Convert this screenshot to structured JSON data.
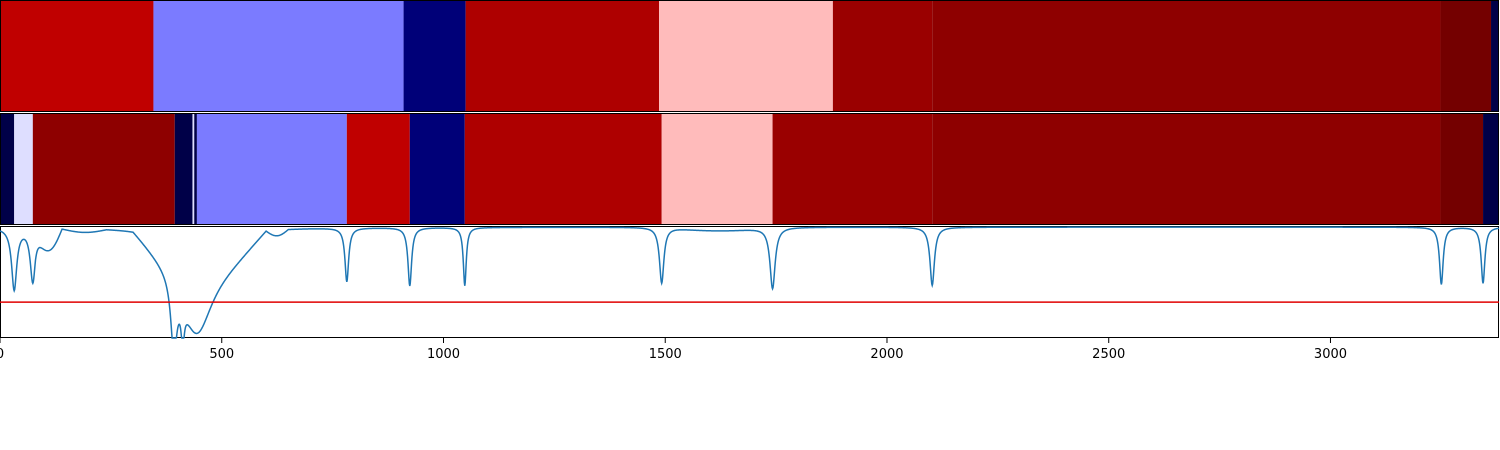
{
  "chart_data": {
    "type": "heatmap",
    "xlim": [
      0,
      3380
    ],
    "x_ticks": [
      {
        "value": 0,
        "label": "0"
      },
      {
        "value": 500,
        "label": "500"
      },
      {
        "value": 1000,
        "label": "1000"
      },
      {
        "value": 1500,
        "label": "1500"
      },
      {
        "value": 2000,
        "label": "2000"
      },
      {
        "value": 2500,
        "label": "2500"
      },
      {
        "value": 3000,
        "label": "3000"
      }
    ],
    "band_rows": [
      {
        "segments": [
          {
            "start": 0,
            "end": 346,
            "color": "#c00000"
          },
          {
            "start": 346,
            "end": 910,
            "color": "#7b7bff"
          },
          {
            "start": 910,
            "end": 1050,
            "color": "#000078"
          },
          {
            "start": 1050,
            "end": 1486,
            "color": "#ae0000"
          },
          {
            "start": 1486,
            "end": 1878,
            "color": "#ffbbbb"
          },
          {
            "start": 1878,
            "end": 2102,
            "color": "#9a0000"
          },
          {
            "start": 2102,
            "end": 3248,
            "color": "#8e0000"
          },
          {
            "start": 3248,
            "end": 3362,
            "color": "#740000"
          },
          {
            "start": 3362,
            "end": 3380,
            "color": "#000048"
          }
        ]
      },
      {
        "segments": [
          {
            "start": 0,
            "end": 32,
            "color": "#000048"
          },
          {
            "start": 32,
            "end": 74,
            "color": "#dedeff"
          },
          {
            "start": 74,
            "end": 394,
            "color": "#8e0000"
          },
          {
            "start": 394,
            "end": 434,
            "color": "#000048"
          },
          {
            "start": 434,
            "end": 438,
            "color": "#dedeff"
          },
          {
            "start": 438,
            "end": 444,
            "color": "#000048"
          },
          {
            "start": 444,
            "end": 782,
            "color": "#7b7bff"
          },
          {
            "start": 782,
            "end": 924,
            "color": "#c00000"
          },
          {
            "start": 924,
            "end": 1048,
            "color": "#000078"
          },
          {
            "start": 1048,
            "end": 1492,
            "color": "#ae0000"
          },
          {
            "start": 1492,
            "end": 1742,
            "color": "#ffbbbb"
          },
          {
            "start": 1742,
            "end": 2102,
            "color": "#9a0000"
          },
          {
            "start": 2102,
            "end": 3248,
            "color": "#8e0000"
          },
          {
            "start": 3248,
            "end": 3344,
            "color": "#740000"
          },
          {
            "start": 3344,
            "end": 3380,
            "color": "#000048"
          }
        ]
      }
    ],
    "line_series": {
      "color": "#1f77b4",
      "ylim": [
        0,
        1
      ],
      "baseline": 0.99,
      "dips": [
        {
          "x": 32,
          "depth": 0.55,
          "width": 7
        },
        {
          "x": 74,
          "depth": 0.48,
          "width": 7
        },
        {
          "x": 392,
          "depth": 0.62,
          "width": 8
        },
        {
          "x": 412,
          "depth": 0.32,
          "width": 4
        },
        {
          "x": 444,
          "depth": 0.55,
          "width": 40
        },
        {
          "x": 782,
          "depth": 0.48,
          "width": 5
        },
        {
          "x": 924,
          "depth": 0.52,
          "width": 5
        },
        {
          "x": 1048,
          "depth": 0.52,
          "width": 4
        },
        {
          "x": 1492,
          "depth": 0.5,
          "width": 6
        },
        {
          "x": 1742,
          "depth": 0.55,
          "width": 7
        },
        {
          "x": 2102,
          "depth": 0.52,
          "width": 6
        },
        {
          "x": 3250,
          "depth": 0.51,
          "width": 5
        },
        {
          "x": 3344,
          "depth": 0.5,
          "width": 5
        }
      ],
      "broad_dips": [
        {
          "start": 80,
          "end": 140,
          "depth": 0.18
        },
        {
          "start": 140,
          "end": 240,
          "depth": 0.03
        },
        {
          "start": 300,
          "end": 600,
          "depth": 0.38
        },
        {
          "start": 600,
          "end": 650,
          "depth": 0.05
        },
        {
          "start": 1500,
          "end": 1740,
          "depth": 0.03
        }
      ],
      "threshold": {
        "value": 0.32,
        "color": "#e00000"
      }
    }
  }
}
